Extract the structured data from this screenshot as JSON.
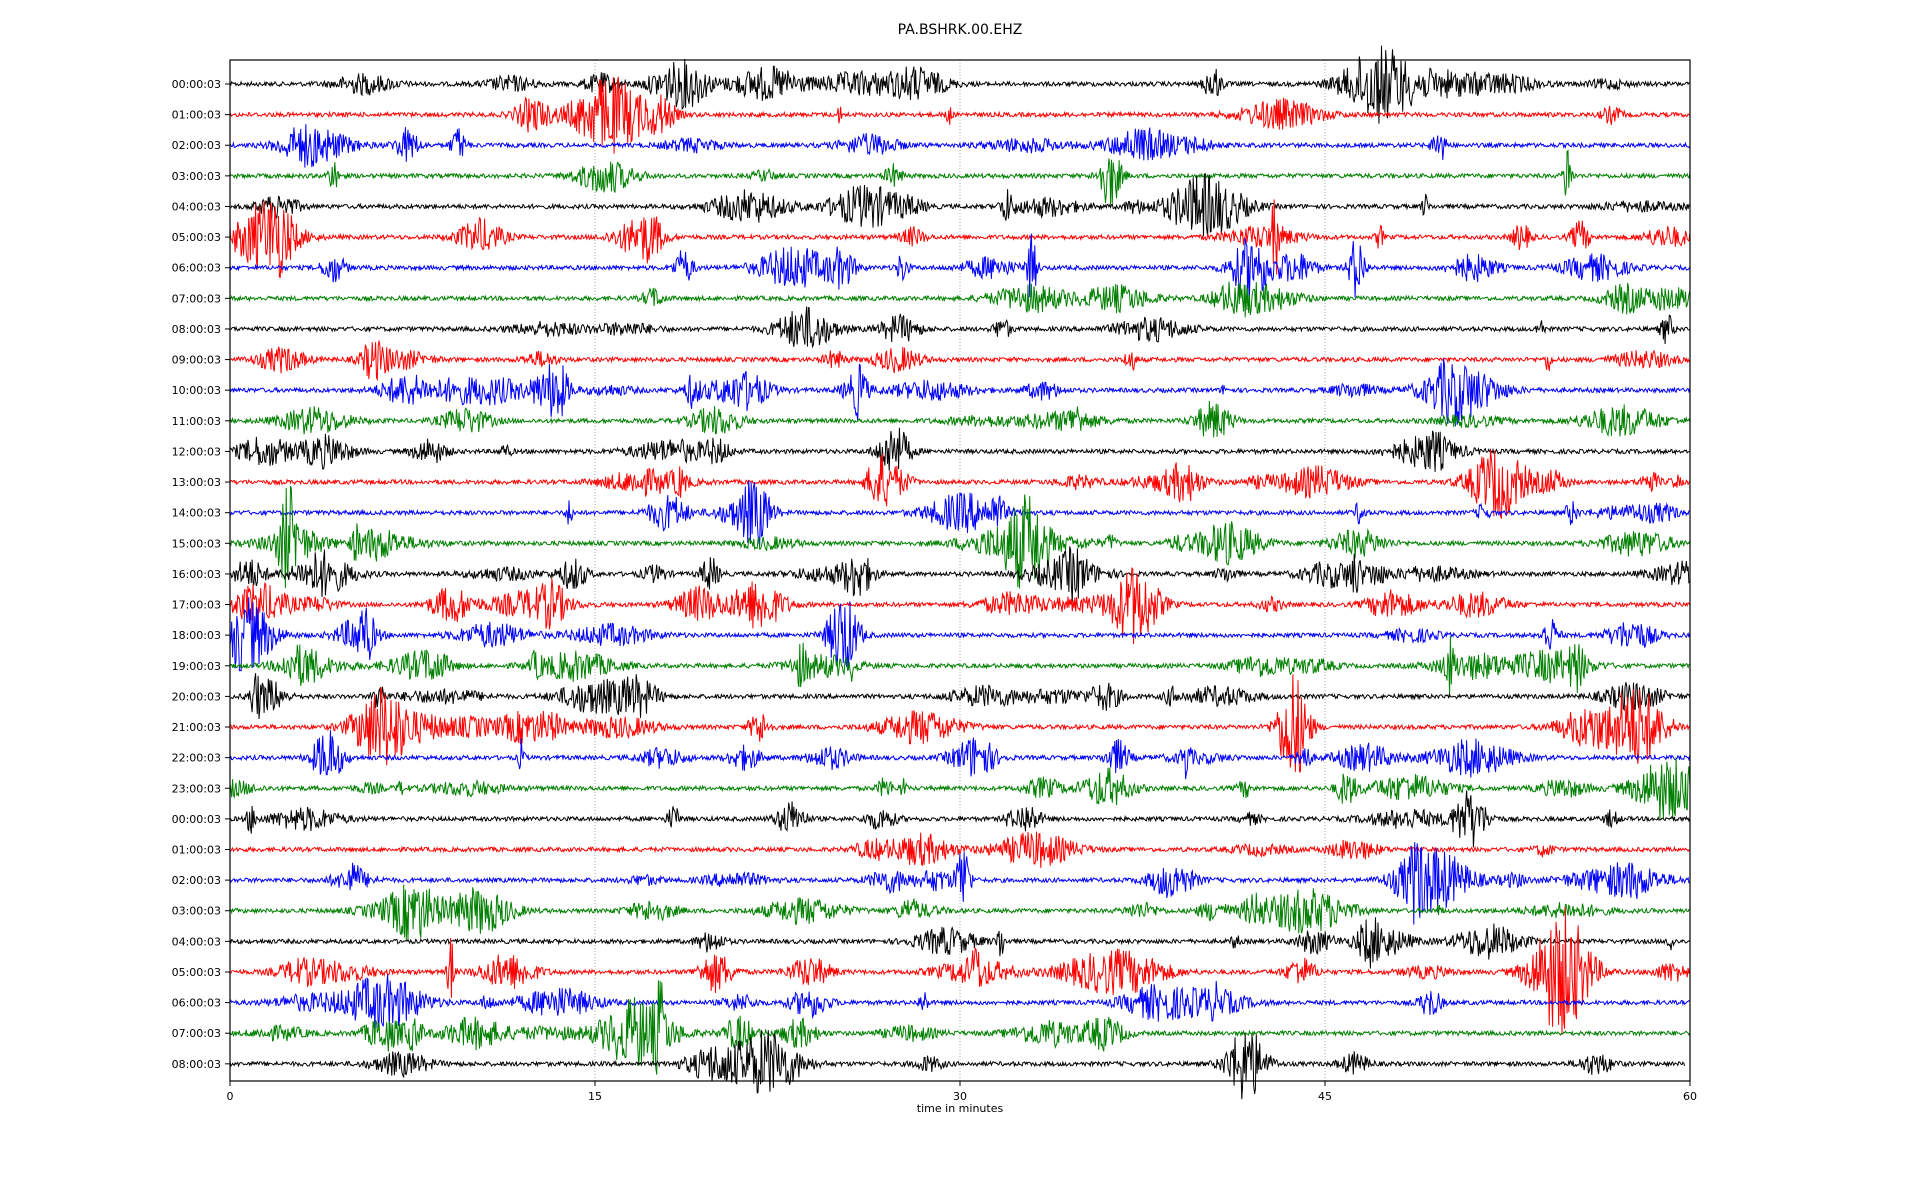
{
  "chart_data": {
    "type": "line",
    "title": "PA.BSHRK.00.EHZ",
    "xlabel": "time in minutes",
    "ylabel": "",
    "xlim": [
      0,
      60
    ],
    "xticks": [
      "0",
      "15",
      "30",
      "45",
      "60"
    ],
    "xtick_values": [
      0,
      15,
      30,
      45,
      60
    ],
    "grid": "vertical dotted at x ticks",
    "row_labels": [
      "00:00:03",
      "01:00:03",
      "02:00:03",
      "03:00:03",
      "04:00:03",
      "05:00:03",
      "06:00:03",
      "07:00:03",
      "08:00:03",
      "09:00:03",
      "10:00:03",
      "11:00:03",
      "12:00:03",
      "13:00:03",
      "14:00:03",
      "15:00:03",
      "16:00:03",
      "17:00:03",
      "18:00:03",
      "19:00:03",
      "20:00:03",
      "21:00:03",
      "22:00:03",
      "23:00:03",
      "00:00:03",
      "01:00:03",
      "02:00:03",
      "03:00:03",
      "04:00:03",
      "05:00:03",
      "06:00:03",
      "07:00:03",
      "08:00:03"
    ],
    "colors": [
      "#000000",
      "#ff0000",
      "#0000ff",
      "#008000"
    ],
    "trace_end_minutes_last_row": 59.8
  }
}
